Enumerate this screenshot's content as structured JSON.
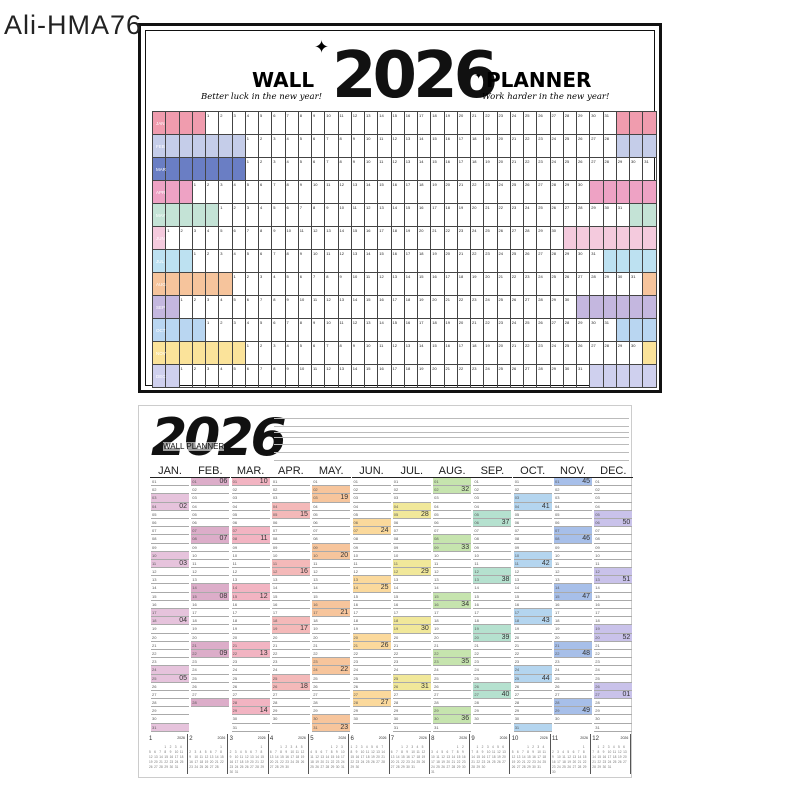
{
  "watermark": "Ali-HMA76",
  "top_planner": {
    "title_left": "WALL",
    "year": "2026",
    "title_right": "PLANNER",
    "tagline_left": "Better luck in the new year!",
    "tagline_right": "Work harder in the new year!",
    "months": [
      {
        "label": "JAN",
        "offset": 3,
        "days": 31,
        "color": "#f09cae"
      },
      {
        "label": "FEB",
        "offset": 6,
        "days": 28,
        "color": "#c5cde9"
      },
      {
        "label": "MAR",
        "offset": 6,
        "days": 31,
        "color": "#6a7ec4"
      },
      {
        "label": "APR",
        "offset": 2,
        "days": 30,
        "color": "#eea2c4"
      },
      {
        "label": "MAY",
        "offset": 4,
        "days": 31,
        "color": "#c4e3d6"
      },
      {
        "label": "JUN",
        "offset": 0,
        "days": 30,
        "color": "#f4cadd"
      },
      {
        "label": "JUL",
        "offset": 2,
        "days": 31,
        "color": "#bde1f1"
      },
      {
        "label": "AUG",
        "offset": 5,
        "days": 31,
        "color": "#f6c49c"
      },
      {
        "label": "SEP",
        "offset": 1,
        "days": 30,
        "color": "#c4b7df"
      },
      {
        "label": "OCT",
        "offset": 3,
        "days": 31,
        "color": "#b9d6f1"
      },
      {
        "label": "NOV",
        "offset": 6,
        "days": 30,
        "color": "#fbe39a"
      },
      {
        "label": "DEC",
        "offset": 1,
        "days": 31,
        "color": "#cfd0ee"
      }
    ]
  },
  "bottom_planner": {
    "year": "2026",
    "subtitle": "WALL PLANNER",
    "mini_year": "2026",
    "months": [
      {
        "label": "JAN.",
        "num": "1",
        "days": 31,
        "first_weekday": 4,
        "color": "#e6c3dc",
        "weeks": [
          "02",
          "03",
          "04",
          "05"
        ]
      },
      {
        "label": "FEB.",
        "num": "2",
        "days": 28,
        "first_weekday": 0,
        "color": "#dcadc9",
        "weeks": [
          "06",
          "07",
          "08",
          "09"
        ]
      },
      {
        "label": "MAR.",
        "num": "3",
        "days": 31,
        "first_weekday": 0,
        "color": "#f2b4c2",
        "weeks": [
          "10",
          "11",
          "12",
          "13",
          "14"
        ]
      },
      {
        "label": "APR.",
        "num": "4",
        "days": 30,
        "first_weekday": 3,
        "color": "#f4b9b9",
        "weeks": [
          "15",
          "16",
          "17",
          "18"
        ]
      },
      {
        "label": "MAY.",
        "num": "5",
        "days": 31,
        "first_weekday": 5,
        "color": "#f7c59c",
        "weeks": [
          "19",
          "20",
          "21",
          "22",
          "23"
        ]
      },
      {
        "label": "JUN.",
        "num": "6",
        "days": 30,
        "first_weekday": 1,
        "color": "#fbd99c",
        "weeks": [
          "24",
          "25",
          "26",
          "27"
        ]
      },
      {
        "label": "JUL.",
        "num": "7",
        "days": 31,
        "first_weekday": 3,
        "color": "#f1e89a",
        "weeks": [
          "28",
          "29",
          "30",
          "31"
        ]
      },
      {
        "label": "AUG.",
        "num": "8",
        "days": 31,
        "first_weekday": 6,
        "color": "#c6e4ae",
        "weeks": [
          "32",
          "33",
          "34",
          "35",
          "36"
        ]
      },
      {
        "label": "SEP.",
        "num": "9",
        "days": 30,
        "first_weekday": 2,
        "color": "#b5e1cf",
        "weeks": [
          "37",
          "38",
          "39",
          "40"
        ]
      },
      {
        "label": "OCT.",
        "num": "10",
        "days": 31,
        "first_weekday": 4,
        "color": "#b4d5ef",
        "weeks": [
          "41",
          "42",
          "43",
          "44"
        ]
      },
      {
        "label": "NOV.",
        "num": "11",
        "days": 30,
        "first_weekday": 0,
        "color": "#a7bfe9",
        "weeks": [
          "45",
          "46",
          "47",
          "48",
          "49"
        ]
      },
      {
        "label": "DEC.",
        "num": "12",
        "days": 31,
        "first_weekday": 2,
        "color": "#c9c2ea",
        "weeks": [
          "50",
          "51",
          "52",
          "01"
        ]
      }
    ]
  }
}
